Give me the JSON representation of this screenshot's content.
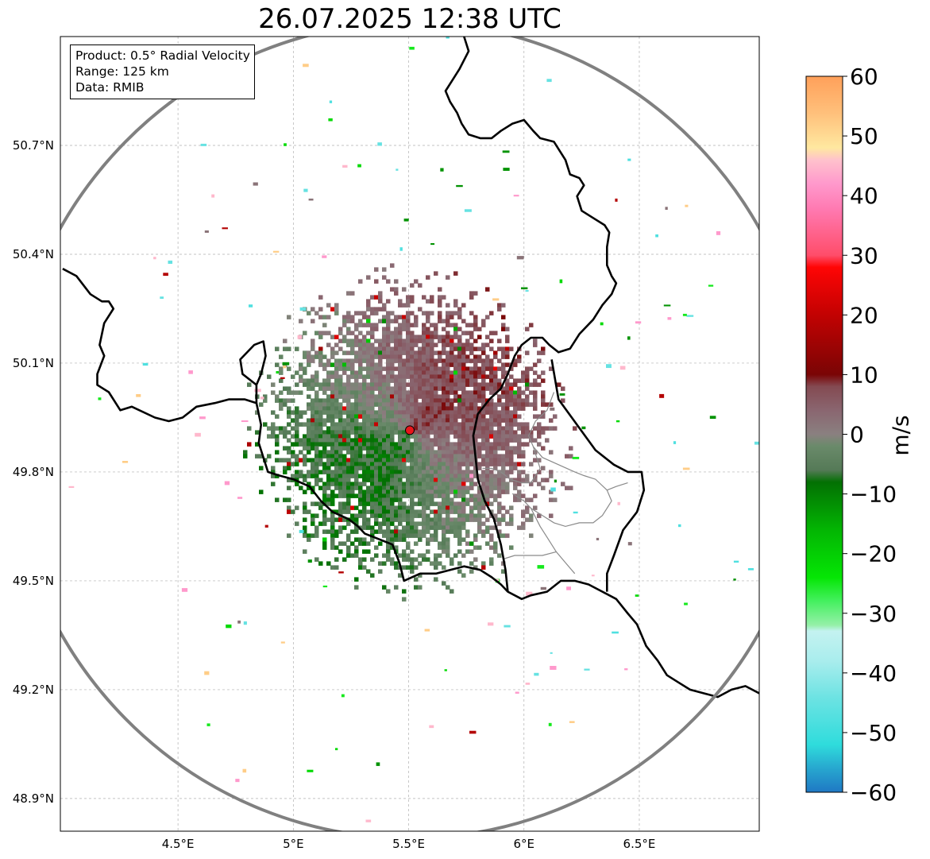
{
  "title": "26.07.2025 12:38 UTC",
  "info": {
    "product": "Product: 0.5° Radial Velocity",
    "range": "Range: 125 km",
    "data": "Data: RMIB"
  },
  "axes": {
    "lon_range": [
      3.99,
      7.02
    ],
    "lat_range": [
      48.81,
      51.0
    ],
    "lon_ticks": [
      {
        "value": 4.5,
        "label": "4.5°E"
      },
      {
        "value": 5.0,
        "label": "5°E"
      },
      {
        "value": 5.5,
        "label": "5.5°E"
      },
      {
        "value": 6.0,
        "label": "6°E"
      },
      {
        "value": 6.5,
        "label": "6.5°E"
      }
    ],
    "lat_ticks": [
      {
        "value": 50.7,
        "label": "50.7°N"
      },
      {
        "value": 50.4,
        "label": "50.4°N"
      },
      {
        "value": 50.1,
        "label": "50.1°N"
      },
      {
        "value": 49.8,
        "label": "49.8°N"
      },
      {
        "value": 49.5,
        "label": "49.5°N"
      },
      {
        "value": 49.2,
        "label": "49.2°N"
      },
      {
        "value": 48.9,
        "label": "48.9°N"
      }
    ],
    "grid": true
  },
  "radar": {
    "site_lon": 5.505,
    "site_lat": 49.915,
    "site_color": "#e8161b",
    "range_km": 125,
    "range_ring_color": "#808080"
  },
  "colorbar": {
    "unit": "m/s",
    "vmin": -60,
    "vmax": 60,
    "tick_values": [
      60,
      50,
      40,
      30,
      20,
      10,
      0,
      -10,
      -20,
      -30,
      -40,
      -50,
      -60
    ],
    "tick_labels": [
      "60",
      "50",
      "40",
      "30",
      "20",
      "10",
      "0",
      "−10",
      "−20",
      "−30",
      "−40",
      "−50",
      "−60"
    ],
    "stops": [
      {
        "v": -60,
        "c": "#1f78c4"
      },
      {
        "v": -56,
        "c": "#27a7cf"
      },
      {
        "v": -52,
        "c": "#2fdcdc"
      },
      {
        "v": -44,
        "c": "#6ee3e3"
      },
      {
        "v": -38,
        "c": "#a9eded"
      },
      {
        "v": -33,
        "c": "#c4f2f0"
      },
      {
        "v": -32,
        "c": "#95f0a8"
      },
      {
        "v": -28,
        "c": "#45f060"
      },
      {
        "v": -24,
        "c": "#05e605"
      },
      {
        "v": -16,
        "c": "#03b503"
      },
      {
        "v": -8,
        "c": "#037003"
      },
      {
        "v": -6,
        "c": "#557a57"
      },
      {
        "v": -2,
        "c": "#6a8a6a"
      },
      {
        "v": 0,
        "c": "#8a8080"
      },
      {
        "v": 4,
        "c": "#8a6670"
      },
      {
        "v": 8,
        "c": "#844a52"
      },
      {
        "v": 10,
        "c": "#7a0505"
      },
      {
        "v": 20,
        "c": "#c20202"
      },
      {
        "v": 28,
        "c": "#ff0505"
      },
      {
        "v": 30,
        "c": "#ff4d6a"
      },
      {
        "v": 38,
        "c": "#ff7bb3"
      },
      {
        "v": 42,
        "c": "#ff99cc"
      },
      {
        "v": 46,
        "c": "#ffc2cc"
      },
      {
        "v": 48,
        "c": "#ffe8a0"
      },
      {
        "v": 54,
        "c": "#ffbf7a"
      },
      {
        "v": 60,
        "c": "#ffa05a"
      }
    ]
  },
  "borders": {
    "national": [
      [
        [
          4.0,
          50.36
        ],
        [
          4.06,
          50.34
        ],
        [
          4.12,
          50.29
        ],
        [
          4.17,
          50.27
        ],
        [
          4.2,
          50.27
        ],
        [
          4.22,
          50.25
        ],
        [
          4.18,
          50.21
        ],
        [
          4.16,
          50.15
        ],
        [
          4.18,
          50.12
        ],
        [
          4.15,
          50.07
        ],
        [
          4.15,
          50.04
        ],
        [
          4.2,
          50.02
        ],
        [
          4.25,
          49.97
        ],
        [
          4.3,
          49.98
        ],
        [
          4.4,
          49.95
        ],
        [
          4.46,
          49.94
        ],
        [
          4.52,
          49.95
        ],
        [
          4.58,
          49.98
        ],
        [
          4.66,
          49.99
        ],
        [
          4.72,
          50.0
        ],
        [
          4.79,
          50.0
        ],
        [
          4.84,
          49.99
        ],
        [
          4.84,
          50.04
        ],
        [
          4.78,
          50.07
        ],
        [
          4.77,
          50.11
        ],
        [
          4.83,
          50.15
        ],
        [
          4.87,
          50.16
        ],
        [
          4.88,
          50.12
        ],
        [
          4.86,
          50.07
        ],
        [
          4.84,
          50.04
        ]
      ],
      [
        [
          4.84,
          49.99
        ],
        [
          4.86,
          49.93
        ],
        [
          4.85,
          49.88
        ],
        [
          4.89,
          49.8
        ],
        [
          4.94,
          49.79
        ],
        [
          5.0,
          49.78
        ],
        [
          5.07,
          49.76
        ],
        [
          5.12,
          49.72
        ],
        [
          5.17,
          49.69
        ],
        [
          5.24,
          49.67
        ],
        [
          5.28,
          49.65
        ],
        [
          5.31,
          49.63
        ],
        [
          5.35,
          49.62
        ],
        [
          5.43,
          49.6
        ],
        [
          5.46,
          49.55
        ],
        [
          5.48,
          49.5
        ],
        [
          5.55,
          49.52
        ],
        [
          5.62,
          49.52
        ],
        [
          5.68,
          49.53
        ],
        [
          5.74,
          49.54
        ],
        [
          5.81,
          49.53
        ],
        [
          5.86,
          49.51
        ],
        [
          5.9,
          49.49
        ],
        [
          5.93,
          49.47
        ],
        [
          5.99,
          49.45
        ],
        [
          6.03,
          49.46
        ],
        [
          6.1,
          49.47
        ],
        [
          6.16,
          49.5
        ],
        [
          6.22,
          49.5
        ],
        [
          6.28,
          49.49
        ],
        [
          6.34,
          49.47
        ],
        [
          6.4,
          49.45
        ],
        [
          6.45,
          49.41
        ],
        [
          6.49,
          49.38
        ],
        [
          6.53,
          49.32
        ],
        [
          6.58,
          49.28
        ],
        [
          6.62,
          49.24
        ],
        [
          6.67,
          49.22
        ],
        [
          6.72,
          49.2
        ],
        [
          6.78,
          49.19
        ],
        [
          6.84,
          49.18
        ],
        [
          6.9,
          49.2
        ],
        [
          6.96,
          49.21
        ],
        [
          7.02,
          49.19
        ]
      ],
      [
        [
          5.74,
          51.0
        ],
        [
          5.76,
          50.96
        ],
        [
          5.72,
          50.91
        ],
        [
          5.69,
          50.88
        ],
        [
          5.66,
          50.85
        ],
        [
          5.68,
          50.82
        ],
        [
          5.71,
          50.79
        ],
        [
          5.73,
          50.76
        ],
        [
          5.76,
          50.73
        ],
        [
          5.81,
          50.72
        ],
        [
          5.86,
          50.72
        ],
        [
          5.9,
          50.74
        ],
        [
          5.95,
          50.76
        ],
        [
          6.0,
          50.77
        ],
        [
          6.04,
          50.74
        ],
        [
          6.07,
          50.72
        ],
        [
          6.13,
          50.71
        ],
        [
          6.18,
          50.66
        ],
        [
          6.2,
          50.62
        ],
        [
          6.24,
          50.61
        ],
        [
          6.26,
          50.59
        ],
        [
          6.23,
          50.56
        ],
        [
          6.25,
          50.52
        ],
        [
          6.3,
          50.5
        ],
        [
          6.35,
          50.48
        ],
        [
          6.37,
          50.46
        ],
        [
          6.36,
          50.42
        ],
        [
          6.36,
          50.37
        ],
        [
          6.38,
          50.34
        ],
        [
          6.4,
          50.32
        ],
        [
          6.38,
          50.29
        ],
        [
          6.34,
          50.26
        ],
        [
          6.3,
          50.22
        ],
        [
          6.24,
          50.18
        ],
        [
          6.2,
          50.14
        ],
        [
          6.15,
          50.13
        ],
        [
          6.11,
          50.15
        ],
        [
          6.08,
          50.17
        ],
        [
          6.03,
          50.17
        ],
        [
          5.99,
          50.15
        ],
        [
          5.96,
          50.12
        ],
        [
          5.93,
          50.07
        ],
        [
          5.9,
          50.03
        ],
        [
          5.85,
          50.0
        ],
        [
          5.8,
          49.96
        ],
        [
          5.78,
          49.9
        ],
        [
          5.79,
          49.84
        ],
        [
          5.8,
          49.78
        ],
        [
          5.83,
          49.72
        ],
        [
          5.87,
          49.67
        ],
        [
          5.9,
          49.6
        ],
        [
          5.92,
          49.53
        ],
        [
          5.93,
          49.47
        ]
      ],
      [
        [
          6.12,
          50.11
        ],
        [
          6.15,
          50.0
        ],
        [
          6.23,
          49.93
        ],
        [
          6.31,
          49.86
        ],
        [
          6.39,
          49.82
        ],
        [
          6.45,
          49.8
        ],
        [
          6.51,
          49.8
        ],
        [
          6.52,
          49.75
        ],
        [
          6.49,
          49.69
        ],
        [
          6.43,
          49.64
        ],
        [
          6.39,
          49.57
        ],
        [
          6.36,
          49.52
        ],
        [
          6.36,
          49.47
        ]
      ]
    ],
    "regional": [
      [
        [
          6.13,
          50.02
        ],
        [
          6.1,
          49.97
        ],
        [
          6.05,
          49.94
        ],
        [
          6.02,
          49.9
        ],
        [
          6.04,
          49.87
        ],
        [
          6.08,
          49.84
        ],
        [
          6.15,
          49.82
        ],
        [
          6.22,
          49.8
        ],
        [
          6.26,
          49.79
        ],
        [
          6.31,
          49.78
        ],
        [
          6.36,
          49.75
        ],
        [
          6.38,
          49.72
        ],
        [
          6.34,
          49.68
        ],
        [
          6.3,
          49.66
        ],
        [
          6.24,
          49.66
        ],
        [
          6.18,
          49.65
        ],
        [
          6.13,
          49.66
        ],
        [
          6.08,
          49.68
        ],
        [
          6.03,
          49.7
        ],
        [
          6.0,
          49.72
        ],
        [
          5.95,
          49.74
        ]
      ],
      [
        [
          6.04,
          49.87
        ],
        [
          6.07,
          49.81
        ],
        [
          6.03,
          49.77
        ],
        [
          5.99,
          49.77
        ],
        [
          5.94,
          49.78
        ],
        [
          5.9,
          49.8
        ],
        [
          5.86,
          49.81
        ],
        [
          5.82,
          49.81
        ]
      ],
      [
        [
          6.03,
          49.7
        ],
        [
          6.07,
          49.65
        ],
        [
          6.1,
          49.62
        ],
        [
          6.14,
          49.58
        ],
        [
          6.18,
          49.55
        ],
        [
          6.22,
          49.52
        ]
      ],
      [
        [
          5.91,
          49.56
        ],
        [
          5.96,
          49.57
        ],
        [
          6.02,
          49.57
        ],
        [
          6.08,
          49.57
        ],
        [
          6.14,
          49.58
        ]
      ],
      [
        [
          6.36,
          49.75
        ],
        [
          6.4,
          49.76
        ],
        [
          6.45,
          49.77
        ]
      ]
    ]
  }
}
